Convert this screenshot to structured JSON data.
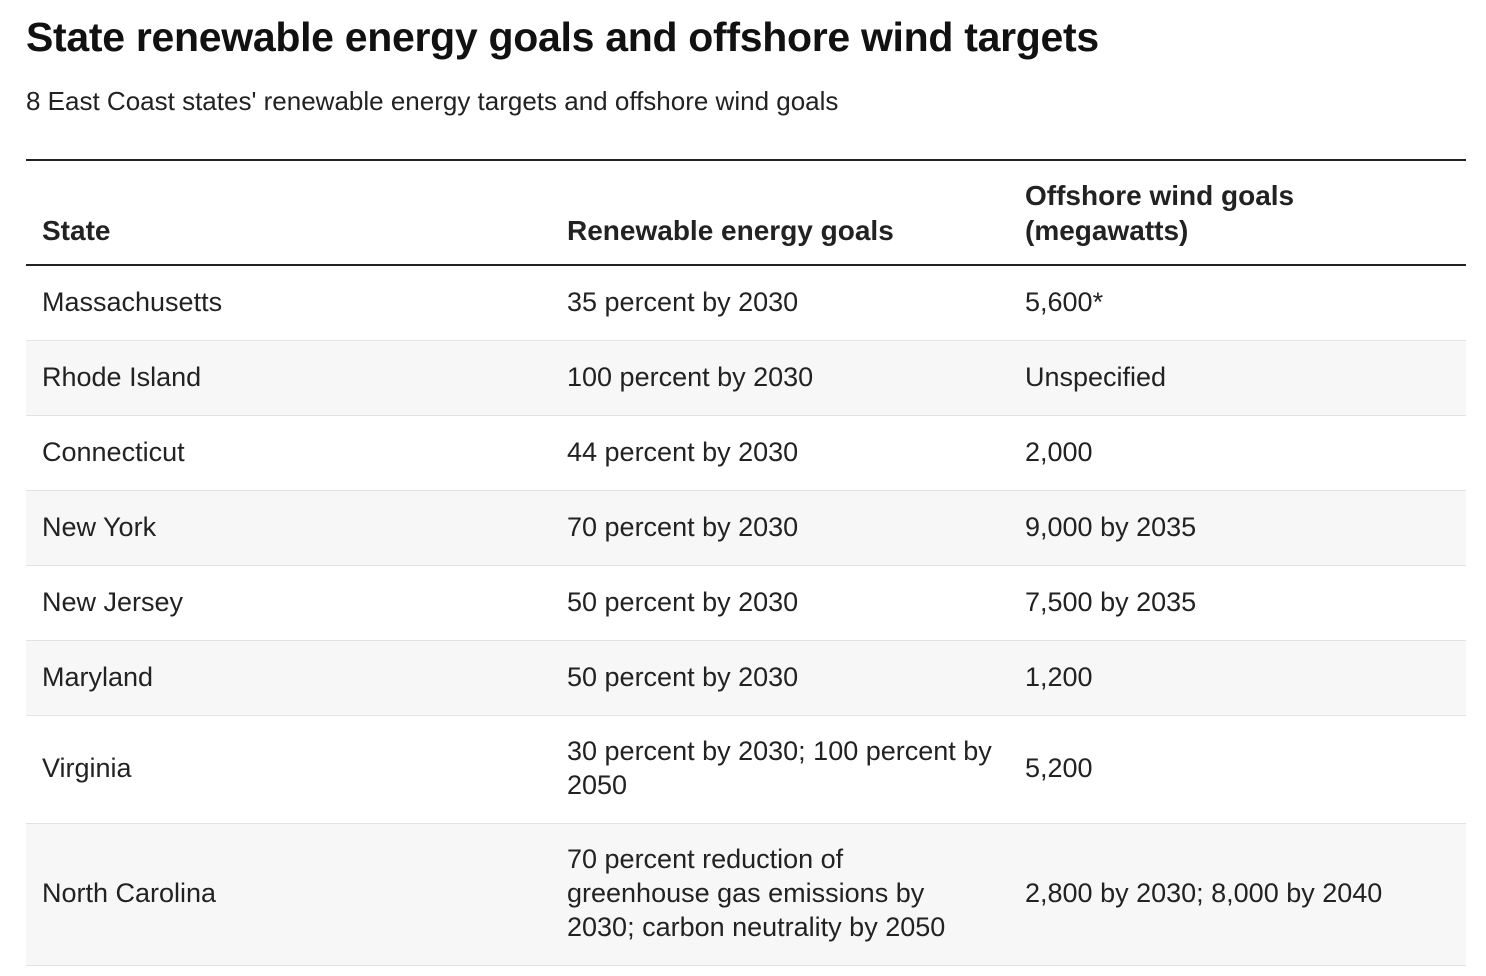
{
  "title": "State renewable energy goals and offshore wind targets",
  "subtitle": "8 East Coast states' renewable energy targets and offshore wind goals",
  "table": {
    "headers": [
      "State",
      "Renewable energy goals",
      "Offshore wind goals (megawatts)"
    ],
    "rows": [
      [
        "Massachusetts",
        "35 percent by 2030",
        "5,600*"
      ],
      [
        "Rhode Island",
        "100 percent by 2030",
        "Unspecified"
      ],
      [
        "Connecticut",
        "44 percent by 2030",
        "2,000"
      ],
      [
        "New York",
        "70 percent by 2030",
        "9,000 by 2035"
      ],
      [
        "New Jersey",
        "50 percent by 2030",
        "7,500 by 2035"
      ],
      [
        "Maryland",
        "50 percent by 2030",
        "1,200"
      ],
      [
        "Virginia",
        "30 percent by 2030; 100 percent by 2050",
        "5,200"
      ],
      [
        "North Carolina",
        "70 percent reduction of greenhouse gas emissions by 2030; carbon neutrality by 2050",
        "2,800 by 2030; 8,000 by 2040"
      ]
    ]
  }
}
